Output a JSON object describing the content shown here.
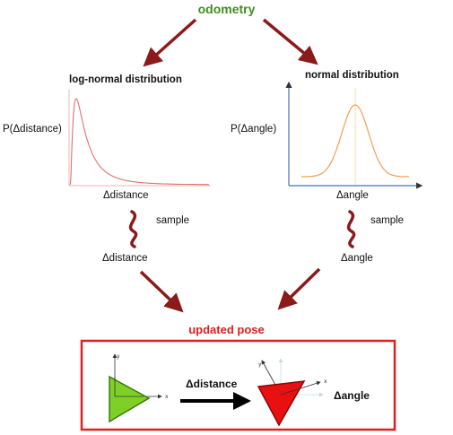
{
  "title": "odometry",
  "left": {
    "heading": "log-normal distribution",
    "ylabel": "P(Δdistance)",
    "xlabel": "Δdistance",
    "sample_label": "sample",
    "result": "Δdistance"
  },
  "right": {
    "heading": "normal distribution",
    "ylabel": "P(Δangle)",
    "xlabel": "Δangle",
    "sample_label": "sample",
    "result": "Δangle"
  },
  "pose": {
    "title": "updated pose",
    "move_label": "Δdistance",
    "turn_label": "Δangle",
    "axis_x": "x",
    "axis_y": "y"
  },
  "colors": {
    "title": "#3f8f1d",
    "arrow": "#8b1a1a",
    "lognormal_curve": "#e07070",
    "normal_curve": "#f0a050",
    "axis_blue": "#4a6fc0",
    "pose_box": "#e02020",
    "start_triangle": "#7fd026",
    "end_triangle": "#e81010"
  },
  "chart_data": [
    {
      "type": "line",
      "title": "log-normal distribution",
      "xlabel": "Δdistance",
      "ylabel": "P(Δdistance)",
      "distribution": "log-normal",
      "mu": 0.0,
      "sigma": 0.9,
      "xlim": [
        0,
        10
      ]
    },
    {
      "type": "line",
      "title": "normal distribution",
      "xlabel": "Δangle",
      "ylabel": "P(Δangle)",
      "distribution": "normal",
      "mu": 0.0,
      "sigma": 1.0,
      "xlim": [
        -4,
        4
      ]
    }
  ]
}
